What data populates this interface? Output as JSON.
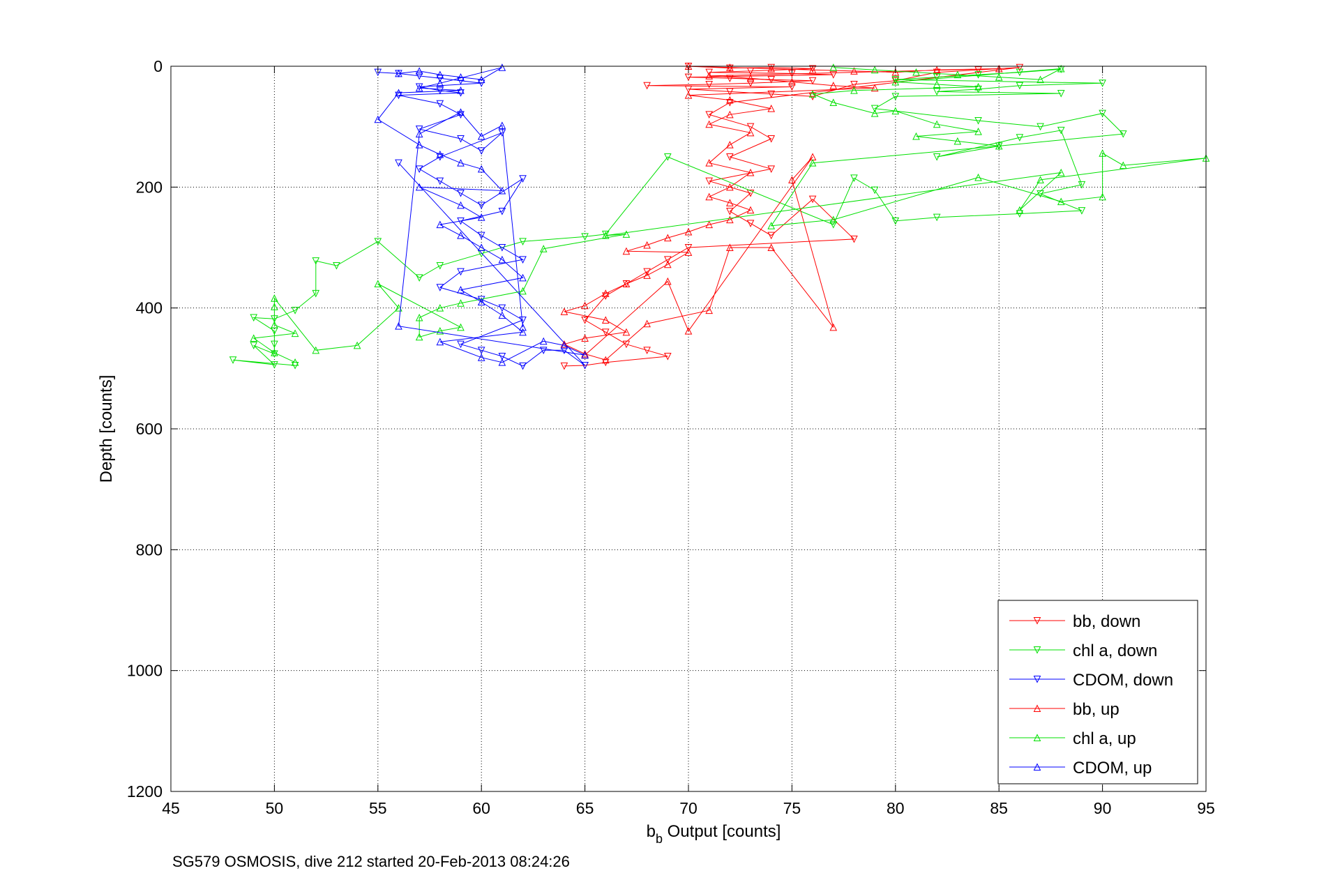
{
  "chart_data": {
    "type": "scatter",
    "xlabel": {
      "main": "b",
      "sub": "b",
      "rest": " Output [counts]"
    },
    "ylabel": "Depth [counts]",
    "caption": "SG579 OSMOSIS, dive 212 started 20-Feb-2013 08:24:26",
    "xlim": [
      45,
      95
    ],
    "ylim": [
      0,
      1200
    ],
    "y_reversed": true,
    "x_ticks": [
      "45",
      "50",
      "55",
      "60",
      "65",
      "70",
      "75",
      "80",
      "85",
      "90",
      "95"
    ],
    "y_ticks": [
      "0",
      "200",
      "400",
      "600",
      "800",
      "1000",
      "1200"
    ],
    "grid": true,
    "legend_position": "bottom-right",
    "series": [
      {
        "name": "bb, down",
        "color": "#ff0000",
        "marker": "triangle-down",
        "points": [
          [
            70,
            0
          ],
          [
            72,
            3
          ],
          [
            74,
            2
          ],
          [
            76,
            4
          ],
          [
            73,
            8
          ],
          [
            71,
            10
          ],
          [
            75,
            12
          ],
          [
            77,
            14
          ],
          [
            70,
            18
          ],
          [
            72,
            20
          ],
          [
            74,
            22
          ],
          [
            76,
            24
          ],
          [
            73,
            28
          ],
          [
            71,
            30
          ],
          [
            68,
            32
          ],
          [
            75,
            34
          ],
          [
            70,
            38
          ],
          [
            72,
            42
          ],
          [
            74,
            46
          ],
          [
            76,
            50
          ],
          [
            78,
            30
          ],
          [
            80,
            24
          ],
          [
            82,
            10
          ],
          [
            84,
            6
          ],
          [
            86,
            2
          ],
          [
            72,
            60
          ],
          [
            71,
            80
          ],
          [
            73,
            100
          ],
          [
            74,
            120
          ],
          [
            72,
            150
          ],
          [
            74,
            170
          ],
          [
            71,
            190
          ],
          [
            73,
            210
          ],
          [
            72,
            240
          ],
          [
            73,
            260
          ],
          [
            74,
            280
          ],
          [
            76,
            220
          ],
          [
            78,
            286
          ],
          [
            70,
            300
          ],
          [
            69,
            320
          ],
          [
            68,
            340
          ],
          [
            67,
            360
          ],
          [
            66,
            380
          ],
          [
            65,
            420
          ],
          [
            66,
            440
          ],
          [
            67,
            460
          ],
          [
            68,
            470
          ],
          [
            69,
            480
          ],
          [
            66,
            490
          ],
          [
            65,
            495
          ],
          [
            64,
            496
          ]
        ]
      },
      {
        "name": "chl a, down",
        "color": "#00e000",
        "marker": "triangle-down",
        "points": [
          [
            88,
            5
          ],
          [
            86,
            10
          ],
          [
            84,
            14
          ],
          [
            82,
            18
          ],
          [
            80,
            22
          ],
          [
            90,
            28
          ],
          [
            86,
            32
          ],
          [
            84,
            38
          ],
          [
            82,
            42
          ],
          [
            88,
            45
          ],
          [
            80,
            50
          ],
          [
            79,
            70
          ],
          [
            84,
            90
          ],
          [
            87,
            100
          ],
          [
            90,
            78
          ],
          [
            91,
            112
          ],
          [
            85,
            132
          ],
          [
            82,
            150
          ],
          [
            86,
            118
          ],
          [
            88,
            106
          ],
          [
            89,
            196
          ],
          [
            87,
            211
          ],
          [
            89,
            239
          ],
          [
            86,
            244
          ],
          [
            82,
            250
          ],
          [
            80,
            256
          ],
          [
            79,
            205
          ],
          [
            78,
            185
          ],
          [
            77,
            262
          ],
          [
            69,
            150
          ],
          [
            66,
            278
          ],
          [
            65,
            282
          ],
          [
            62,
            290
          ],
          [
            60,
            310
          ],
          [
            58,
            330
          ],
          [
            57,
            350
          ],
          [
            55,
            290
          ],
          [
            53,
            330
          ],
          [
            52,
            322
          ],
          [
            52,
            376
          ],
          [
            51,
            404
          ],
          [
            50,
            418
          ],
          [
            49,
            416
          ],
          [
            50,
            438
          ],
          [
            50,
            460
          ],
          [
            50,
            476
          ],
          [
            49,
            462
          ],
          [
            50,
            494
          ],
          [
            48,
            486
          ],
          [
            51,
            495
          ]
        ]
      },
      {
        "name": "CDOM, down",
        "color": "#0000ff",
        "marker": "triangle-down",
        "points": [
          [
            55,
            10
          ],
          [
            56,
            12
          ],
          [
            57,
            16
          ],
          [
            58,
            20
          ],
          [
            59,
            24
          ],
          [
            60,
            28
          ],
          [
            57,
            34
          ],
          [
            58,
            40
          ],
          [
            59,
            44
          ],
          [
            56,
            48
          ],
          [
            58,
            62
          ],
          [
            59,
            80
          ],
          [
            57,
            104
          ],
          [
            59,
            120
          ],
          [
            60,
            140
          ],
          [
            61,
            110
          ],
          [
            58,
            150
          ],
          [
            57,
            170
          ],
          [
            58,
            190
          ],
          [
            59,
            210
          ],
          [
            60,
            230
          ],
          [
            62,
            186
          ],
          [
            61,
            240
          ],
          [
            59,
            256
          ],
          [
            60,
            280
          ],
          [
            61,
            300
          ],
          [
            62,
            320
          ],
          [
            59,
            340
          ],
          [
            58,
            366
          ],
          [
            60,
            386
          ],
          [
            61,
            400
          ],
          [
            62,
            420
          ],
          [
            59,
            460
          ],
          [
            60,
            470
          ],
          [
            61,
            480
          ],
          [
            62,
            496
          ],
          [
            63,
            470
          ],
          [
            64,
            470
          ],
          [
            65,
            495
          ],
          [
            56,
            160
          ]
        ]
      },
      {
        "name": "bb, up",
        "color": "#ff0000",
        "marker": "triangle-up",
        "points": [
          [
            70,
            0
          ],
          [
            72,
            2
          ],
          [
            74,
            4
          ],
          [
            76,
            6
          ],
          [
            78,
            8
          ],
          [
            80,
            10
          ],
          [
            82,
            6
          ],
          [
            85,
            4
          ],
          [
            71,
            16
          ],
          [
            73,
            20
          ],
          [
            75,
            26
          ],
          [
            77,
            32
          ],
          [
            79,
            36
          ],
          [
            70,
            48
          ],
          [
            72,
            56
          ],
          [
            74,
            70
          ],
          [
            72,
            80
          ],
          [
            71,
            96
          ],
          [
            73,
            110
          ],
          [
            72,
            130
          ],
          [
            71,
            160
          ],
          [
            73,
            176
          ],
          [
            72,
            200
          ],
          [
            71,
            216
          ],
          [
            72,
            226
          ],
          [
            73,
            238
          ],
          [
            72,
            254
          ],
          [
            71,
            262
          ],
          [
            70,
            274
          ],
          [
            69,
            284
          ],
          [
            68,
            296
          ],
          [
            67,
            306
          ],
          [
            70,
            308
          ],
          [
            69,
            328
          ],
          [
            68,
            346
          ],
          [
            67,
            360
          ],
          [
            66,
            376
          ],
          [
            65,
            396
          ],
          [
            64,
            406
          ],
          [
            66,
            420
          ],
          [
            67,
            440
          ],
          [
            65,
            450
          ],
          [
            64,
            460
          ],
          [
            65,
            476
          ],
          [
            66,
            486
          ],
          [
            68,
            426
          ],
          [
            71,
            404
          ],
          [
            72,
            300
          ],
          [
            74,
            300
          ],
          [
            77,
            432
          ],
          [
            75,
            188
          ],
          [
            76,
            150
          ],
          [
            70,
            438
          ],
          [
            69,
            356
          ],
          [
            65,
            478
          ]
        ]
      },
      {
        "name": "chl a, up",
        "color": "#00e000",
        "marker": "triangle-up",
        "points": [
          [
            77,
            2
          ],
          [
            79,
            6
          ],
          [
            81,
            10
          ],
          [
            83,
            14
          ],
          [
            85,
            18
          ],
          [
            87,
            22
          ],
          [
            88,
            4
          ],
          [
            80,
            26
          ],
          [
            82,
            30
          ],
          [
            84,
            34
          ],
          [
            78,
            40
          ],
          [
            76,
            46
          ],
          [
            77,
            60
          ],
          [
            79,
            78
          ],
          [
            80,
            74
          ],
          [
            82,
            96
          ],
          [
            84,
            108
          ],
          [
            81,
            116
          ],
          [
            83,
            124
          ],
          [
            85,
            132
          ],
          [
            76,
            160
          ],
          [
            74,
            264
          ],
          [
            77,
            254
          ],
          [
            84,
            184
          ],
          [
            88,
            224
          ],
          [
            90,
            216
          ],
          [
            90,
            144
          ],
          [
            91,
            164
          ],
          [
            95,
            152
          ],
          [
            87,
            188
          ],
          [
            86,
            238
          ],
          [
            88,
            176
          ],
          [
            66,
            280
          ],
          [
            67,
            278
          ],
          [
            63,
            302
          ],
          [
            62,
            372
          ],
          [
            59,
            392
          ],
          [
            58,
            400
          ],
          [
            57,
            416
          ],
          [
            57,
            448
          ],
          [
            58,
            438
          ],
          [
            59,
            432
          ],
          [
            55,
            360
          ],
          [
            56,
            400
          ],
          [
            54,
            462
          ],
          [
            52,
            470
          ],
          [
            50,
            384
          ],
          [
            50,
            398
          ],
          [
            50,
            428
          ],
          [
            51,
            442
          ],
          [
            49,
            450
          ],
          [
            50,
            474
          ],
          [
            51,
            490
          ]
        ]
      },
      {
        "name": "CDOM, up",
        "color": "#0000ff",
        "marker": "triangle-up",
        "points": [
          [
            56,
            12
          ],
          [
            57,
            8
          ],
          [
            58,
            14
          ],
          [
            59,
            18
          ],
          [
            60,
            22
          ],
          [
            61,
            2
          ],
          [
            58,
            28
          ],
          [
            57,
            36
          ],
          [
            59,
            40
          ],
          [
            56,
            44
          ],
          [
            55,
            88
          ],
          [
            57,
            130
          ],
          [
            58,
            146
          ],
          [
            59,
            160
          ],
          [
            60,
            170
          ],
          [
            61,
            206
          ],
          [
            57,
            200
          ],
          [
            59,
            230
          ],
          [
            60,
            250
          ],
          [
            58,
            262
          ],
          [
            59,
            280
          ],
          [
            60,
            300
          ],
          [
            61,
            320
          ],
          [
            62,
            350
          ],
          [
            59,
            370
          ],
          [
            60,
            390
          ],
          [
            61,
            412
          ],
          [
            62,
            440
          ],
          [
            58,
            456
          ],
          [
            60,
            482
          ],
          [
            61,
            490
          ],
          [
            63,
            455
          ],
          [
            64,
            462
          ],
          [
            65,
            478
          ],
          [
            56,
            430
          ],
          [
            57,
            112
          ],
          [
            59,
            76
          ],
          [
            60,
            116
          ],
          [
            61,
            98
          ],
          [
            62,
            432
          ]
        ]
      }
    ]
  }
}
